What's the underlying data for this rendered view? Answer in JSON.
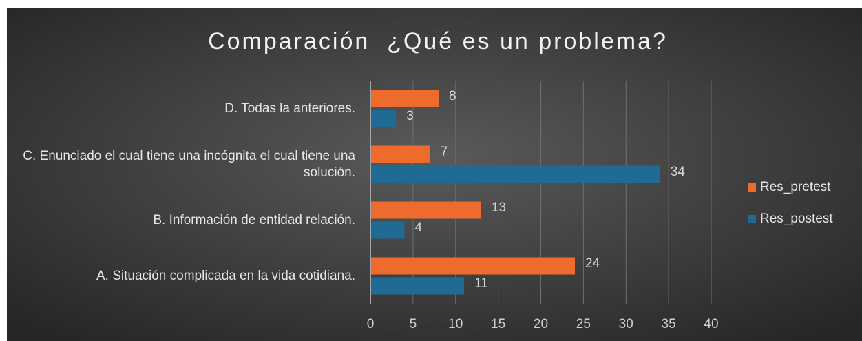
{
  "chart_data": {
    "type": "bar",
    "orientation": "horizontal",
    "title": "Comparación  ¿Qué es un problema?",
    "categories": [
      "A. Situación complicada en la vida cotidiana.",
      "B. Información de entidad relación.",
      "C. Enunciado el cual tiene una incógnita el cual tiene una solución.",
      "D. Todas la anteriores."
    ],
    "series": [
      {
        "name": "Res_pretest",
        "color": "#ed6b2d",
        "values": [
          24,
          13,
          7,
          8
        ]
      },
      {
        "name": "Res_postest",
        "color": "#1f6b93",
        "values": [
          11,
          4,
          34,
          3
        ]
      }
    ],
    "xlim": [
      0,
      40
    ],
    "xticks": [
      0,
      5,
      10,
      15,
      20,
      25,
      30,
      35,
      40
    ],
    "grid": true,
    "legend": "right"
  }
}
